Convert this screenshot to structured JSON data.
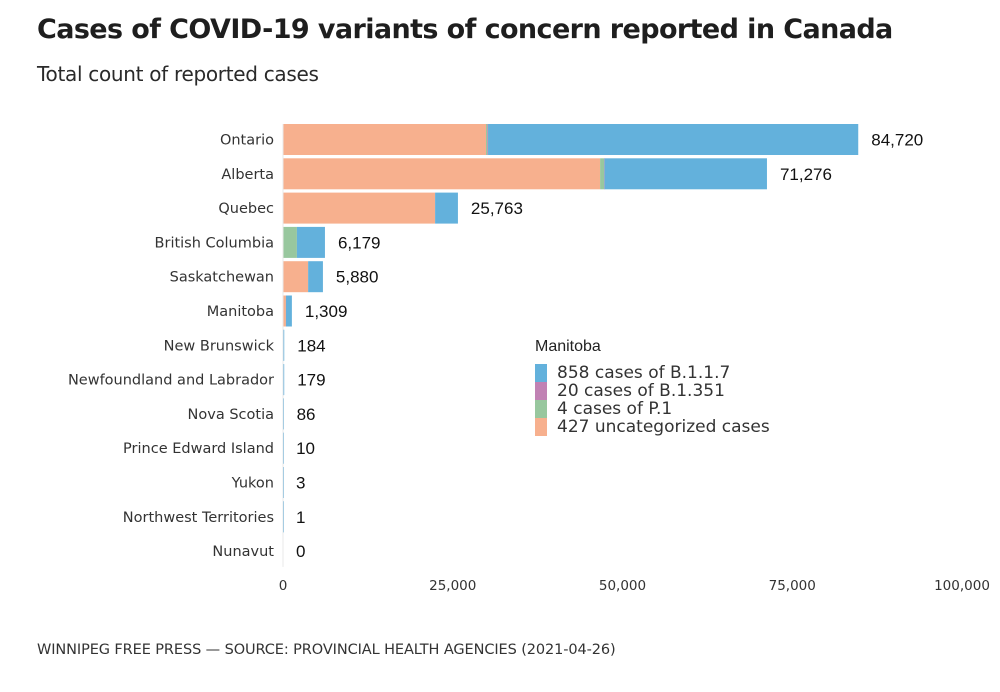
{
  "chart_data": {
    "type": "bar",
    "orientation": "horizontal",
    "stacked": true,
    "title": "Cases of COVID-19 variants of concern reported in Canada",
    "subtitle": "Total count of reported cases",
    "source": "WINNIPEG FREE PRESS — SOURCE: PROVINCIAL HEALTH AGENCIES (2021-04-26)",
    "xlabel": "",
    "ylabel": "",
    "xlim": [
      0,
      100000
    ],
    "xticks": [
      0,
      25000,
      50000,
      75000,
      100000
    ],
    "xtick_labels": [
      "0",
      "25,000",
      "50,000",
      "75,000",
      "100,000"
    ],
    "grid": false,
    "categories": [
      "Ontario",
      "Alberta",
      "Quebec",
      "British Columbia",
      "Saskatchewan",
      "Manitoba",
      "New Brunswick",
      "Newfoundland and Labrador",
      "Nova Scotia",
      "Prince Edward Island",
      "Yukon",
      "Northwest Territories",
      "Nunavut"
    ],
    "totals": [
      84720,
      71276,
      25763,
      6179,
      5880,
      1309,
      184,
      179,
      86,
      10,
      3,
      1,
      0
    ],
    "total_labels": [
      "84,720",
      "71,276",
      "25,763",
      "6,179",
      "5,880",
      "1,309",
      "184",
      "179",
      "86",
      "10",
      "3",
      "1",
      "0"
    ],
    "series": [
      {
        "name": "uncategorized",
        "color": "#f7b08e",
        "values": [
          29900,
          46700,
          22400,
          0,
          3700,
          427,
          0,
          0,
          0,
          0,
          0,
          0,
          0
        ]
      },
      {
        "name": "P.1",
        "color": "#98c79e",
        "values": [
          200,
          600,
          0,
          2050,
          0,
          4,
          0,
          0,
          0,
          0,
          0,
          0,
          0
        ]
      },
      {
        "name": "B.1.351",
        "color": "#c182b4",
        "values": [
          100,
          50,
          0,
          0,
          0,
          20,
          0,
          0,
          0,
          0,
          0,
          0,
          0
        ]
      },
      {
        "name": "B.1.1.7",
        "color": "#63b1dc",
        "values": [
          54520,
          23926,
          3363,
          4129,
          2180,
          858,
          184,
          179,
          86,
          10,
          3,
          1,
          0
        ]
      }
    ],
    "legend": {
      "title": "Manitoba",
      "placement": "center-right",
      "entries": [
        {
          "label": "858 cases of B.1.1.7",
          "color": "#63b1dc"
        },
        {
          "label": "20 cases of B.1.351",
          "color": "#c182b4"
        },
        {
          "label": "4 cases of P.1",
          "color": "#98c79e"
        },
        {
          "label": "427 uncategorized cases",
          "color": "#f7b08e"
        }
      ]
    }
  }
}
